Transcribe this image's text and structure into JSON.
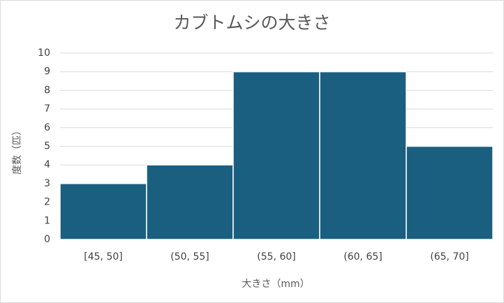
{
  "chart_data": {
    "type": "bar",
    "title": "カブトムシの大きさ",
    "x_label": "大きさ（mm）",
    "y_label": "度数（匹）",
    "categories": [
      "[45, 50]",
      "(50, 55]",
      "(55, 60]",
      "(60, 65]",
      "(65, 70]"
    ],
    "values": [
      3,
      4,
      9,
      9,
      5
    ],
    "color": "#1a5f80",
    "ylim": [
      0,
      10
    ],
    "yticks": [
      0,
      1,
      2,
      3,
      4,
      5,
      6,
      7,
      8,
      9,
      10
    ],
    "grid": true
  }
}
